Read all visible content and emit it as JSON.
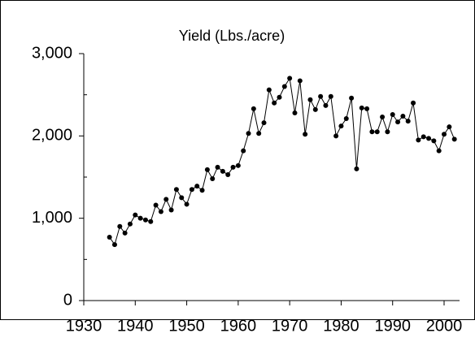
{
  "chart_data": {
    "type": "line",
    "title": "Yield (Lbs./acre)",
    "x": [
      1935,
      1936,
      1937,
      1938,
      1939,
      1940,
      1941,
      1942,
      1943,
      1944,
      1945,
      1946,
      1947,
      1948,
      1949,
      1950,
      1951,
      1952,
      1953,
      1954,
      1955,
      1956,
      1957,
      1958,
      1959,
      1960,
      1961,
      1962,
      1963,
      1964,
      1965,
      1966,
      1967,
      1968,
      1969,
      1970,
      1971,
      1972,
      1973,
      1974,
      1975,
      1976,
      1977,
      1978,
      1979,
      1980,
      1981,
      1982,
      1983,
      1984,
      1985,
      1986,
      1987,
      1988,
      1989,
      1990,
      1991,
      1992,
      1993,
      1994,
      1995,
      1996,
      1997,
      1998,
      1999,
      2000,
      2001,
      2002
    ],
    "values": [
      770,
      680,
      900,
      820,
      930,
      1040,
      1000,
      980,
      960,
      1160,
      1080,
      1230,
      1100,
      1350,
      1250,
      1170,
      1350,
      1390,
      1340,
      1590,
      1480,
      1620,
      1570,
      1530,
      1620,
      1640,
      1820,
      2030,
      2330,
      2030,
      2160,
      2560,
      2400,
      2470,
      2600,
      2700,
      2280,
      2670,
      2020,
      2440,
      2320,
      2480,
      2370,
      2480,
      2000,
      2120,
      2210,
      2460,
      1600,
      2340,
      2330,
      2050,
      2050,
      2230,
      2050,
      2260,
      2170,
      2240,
      2180,
      2400,
      1950,
      1990,
      1970,
      1940,
      1820,
      2020,
      2110,
      1960
    ],
    "color": "#000000",
    "xlim": [
      1930,
      2003
    ],
    "xticks": [
      1930,
      1940,
      1950,
      1960,
      1970,
      1980,
      1990,
      2000
    ],
    "ylim": [
      0,
      3000
    ],
    "yticks": [
      0,
      {
        "value": 1000,
        "label": "1,000"
      },
      {
        "value": 2000,
        "label": "2,000"
      },
      {
        "value": 3000,
        "label": "3,000"
      }
    ],
    "yminor_ticks": [
      500,
      1500,
      2500
    ],
    "grid": false
  }
}
